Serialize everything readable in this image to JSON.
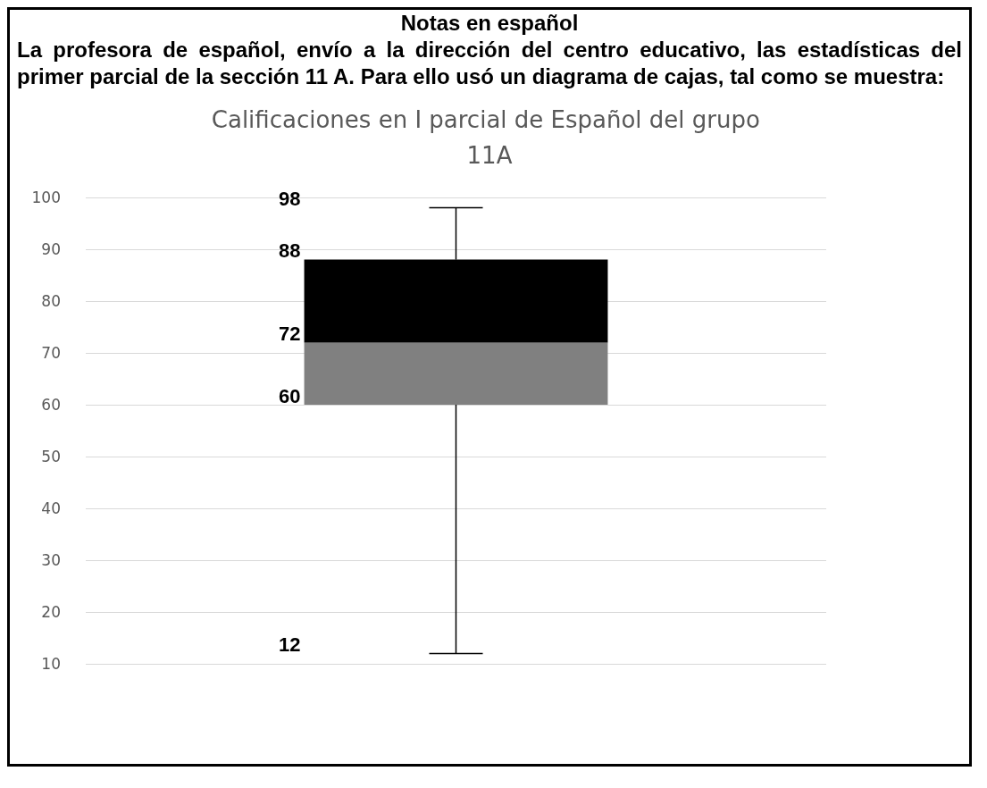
{
  "chart_data": {
    "type": "box",
    "title": "Calificaciones en I parcial de Español del grupo 11A",
    "annotations": [
      "Notas en español",
      "La profesora de español, envío a la dirección del centro educativo, las estadísticas del primer parcial de la sección 11 A. Para ello usó un diagrama de cajas, tal como se muestra:"
    ],
    "categories": [
      null
    ],
    "series": [
      {
        "colors": [
          [
            "#808080",
            "#000000"
          ]
        ],
        "boxes": [
          {
            "low": 12,
            "q1": 60,
            "median": 72,
            "q3": 88,
            "high": 98
          }
        ],
        "value_labels": [
          [
            "98",
            "88",
            "72",
            "60",
            "12"
          ]
        ]
      }
    ],
    "ylim": [
      10,
      100
    ],
    "yticks": [
      10,
      20,
      30,
      40,
      50,
      60,
      70,
      80,
      90,
      100
    ],
    "grid": "y",
    "tick_labels": "y",
    "data_labels": true
  }
}
